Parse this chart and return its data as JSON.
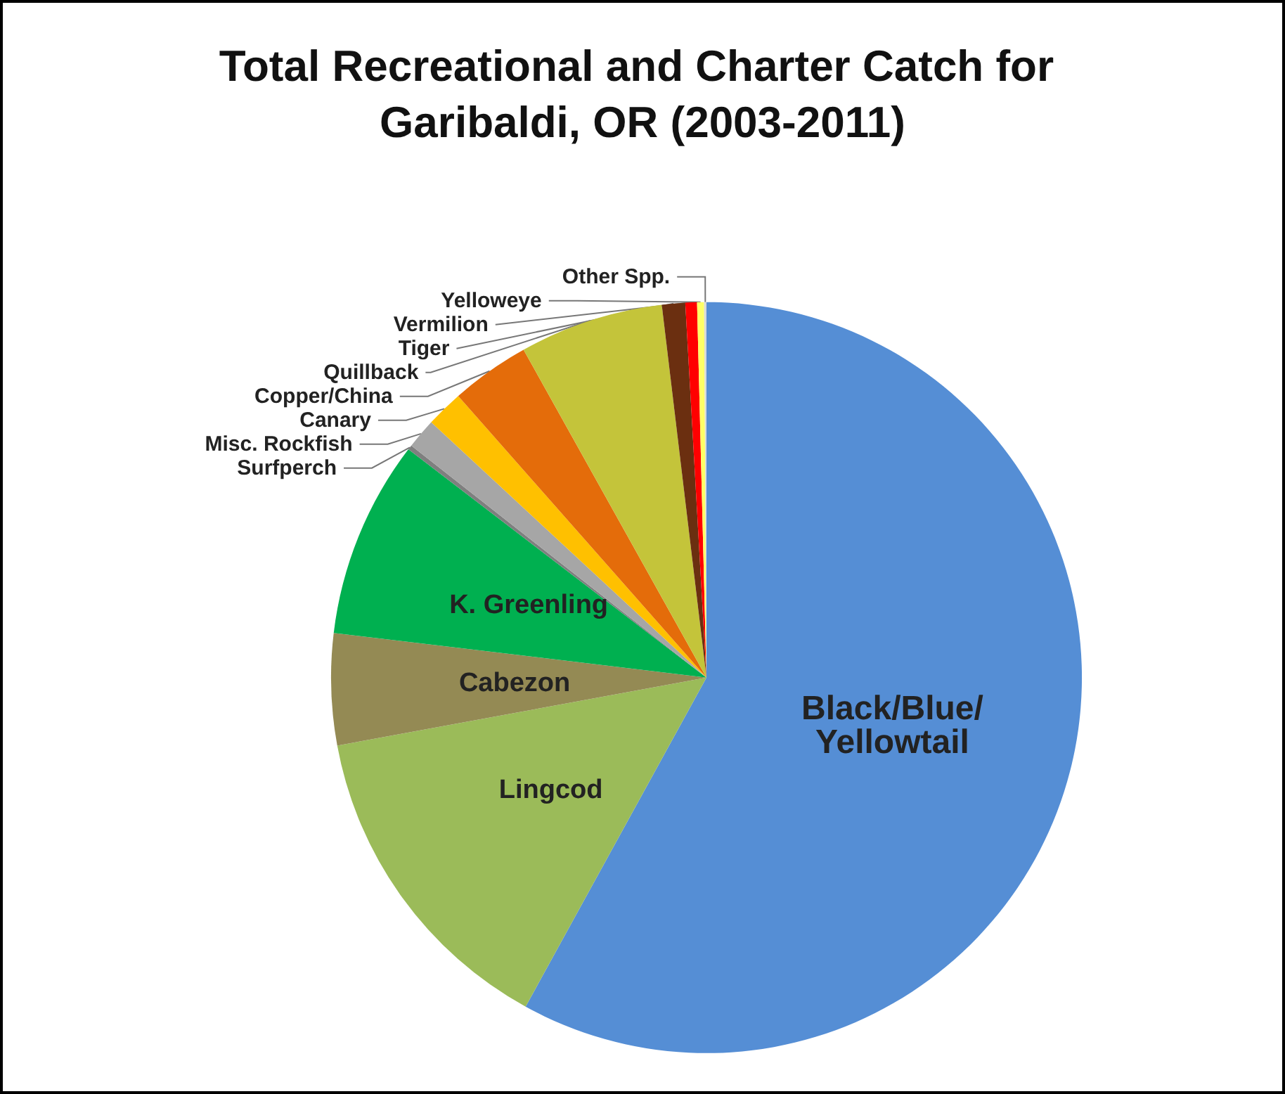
{
  "chart_data": {
    "type": "pie",
    "title": "Total Recreational and Charter Catch for Garibaldi, OR (2003-2011)",
    "categories": [
      "Black/Blue/Yellowtail",
      "Lingcod",
      "Cabezon",
      "K. Greenling",
      "Surfperch",
      "Misc. Rockfish",
      "Canary",
      "Copper/China",
      "Quillback",
      "Tiger",
      "Vermilion",
      "Yelloweye",
      "Other Spp."
    ],
    "values": [
      58,
      14.1,
      4.8,
      8.5,
      0.2,
      1.3,
      1.6,
      3.4,
      6.2,
      1.0,
      0.5,
      0.3,
      0.1
    ],
    "colors": [
      "#558ed5",
      "#9bbb59",
      "#948a54",
      "#00b050",
      "#7f7f7f",
      "#a6a6a6",
      "#ffc000",
      "#e46c0a",
      "#c4c43a",
      "#6b2f10",
      "#ff0000",
      "#ffff66",
      "#d9d9d9"
    ],
    "legend": false
  }
}
